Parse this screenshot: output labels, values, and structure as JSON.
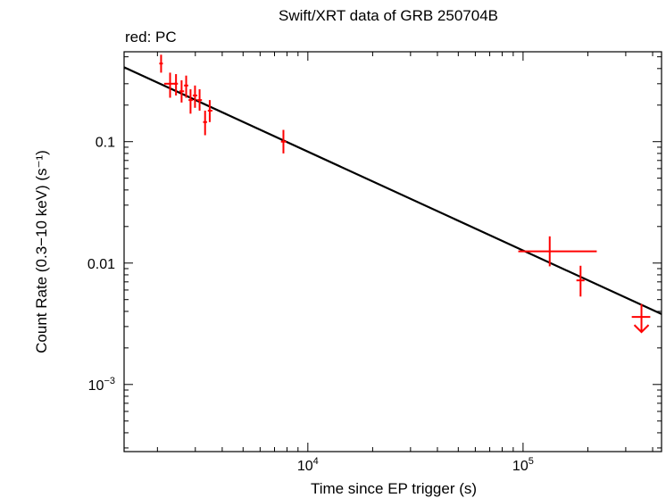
{
  "chart_data": {
    "type": "scatter",
    "title": "Swift/XRT data of GRB 250704B",
    "subtitle": "red: PC",
    "xlabel": "Time since EP trigger (s)",
    "ylabel": "Count Rate (0.3−10 keV) (s⁻¹)",
    "x_scale": "log",
    "y_scale": "log",
    "xlim": [
      1400,
      440000
    ],
    "ylim": [
      0.00028,
      0.55
    ],
    "x_major_ticks": [
      {
        "value": 10000,
        "base": "10",
        "exp": "4"
      },
      {
        "value": 100000,
        "base": "10",
        "exp": "5"
      }
    ],
    "y_major_ticks": [
      {
        "value": 0.1,
        "label": "0.1"
      },
      {
        "value": 0.01,
        "label": "0.01"
      },
      {
        "value": 0.001,
        "base": "10",
        "exp": "−3"
      }
    ],
    "grid": false,
    "series": [
      {
        "color": "#ff0000",
        "points": [
          {
            "x": 2080,
            "xerr": [
              2040,
              2120
            ],
            "y": 0.44,
            "yerr": [
              0.37,
              0.52
            ]
          },
          {
            "x": 2290,
            "xerr": [
              2150,
              2450
            ],
            "y": 0.3,
            "yerr": [
              0.23,
              0.37
            ]
          },
          {
            "x": 2440,
            "xerr": [
              2390,
              2490
            ],
            "y": 0.3,
            "yerr": [
              0.24,
              0.36
            ]
          },
          {
            "x": 2590,
            "xerr": [
              2530,
              2660
            ],
            "y": 0.26,
            "yerr": [
              0.21,
              0.32
            ]
          },
          {
            "x": 2720,
            "xerr": [
              2660,
              2780
            ],
            "y": 0.29,
            "yerr": [
              0.23,
              0.35
            ]
          },
          {
            "x": 2850,
            "xerr": [
              2790,
              2920
            ],
            "y": 0.22,
            "yerr": [
              0.17,
              0.27
            ]
          },
          {
            "x": 2990,
            "xerr": [
              2920,
              3060
            ],
            "y": 0.24,
            "yerr": [
              0.19,
              0.29
            ]
          },
          {
            "x": 3140,
            "xerr": [
              3060,
              3220
            ],
            "y": 0.22,
            "yerr": [
              0.18,
              0.27
            ]
          },
          {
            "x": 3330,
            "xerr": [
              3260,
              3400
            ],
            "y": 0.145,
            "yerr": [
              0.113,
              0.18
            ]
          },
          {
            "x": 3500,
            "xerr": [
              3430,
              3600
            ],
            "y": 0.18,
            "yerr": [
              0.145,
              0.22
            ]
          },
          {
            "x": 7700,
            "xerr": [
              7500,
              7950
            ],
            "y": 0.1,
            "yerr": [
              0.08,
              0.125
            ]
          },
          {
            "x": 133000,
            "xerr": [
              95000,
              220000
            ],
            "y": 0.0125,
            "yerr": [
              0.0094,
              0.0166
            ]
          },
          {
            "x": 185000,
            "xerr": [
              177000,
              193000
            ],
            "y": 0.0072,
            "yerr": [
              0.0053,
              0.0095
            ]
          }
        ],
        "upper_limits": [
          {
            "x": 355000,
            "xerr": [
              320000,
              390000
            ],
            "y": 0.0036,
            "ytop": 0.0046
          }
        ]
      }
    ],
    "model_line": {
      "color": "#000000",
      "from": {
        "x": 1400,
        "y": 0.41
      },
      "to": {
        "x": 440000,
        "y": 0.0038
      }
    }
  }
}
